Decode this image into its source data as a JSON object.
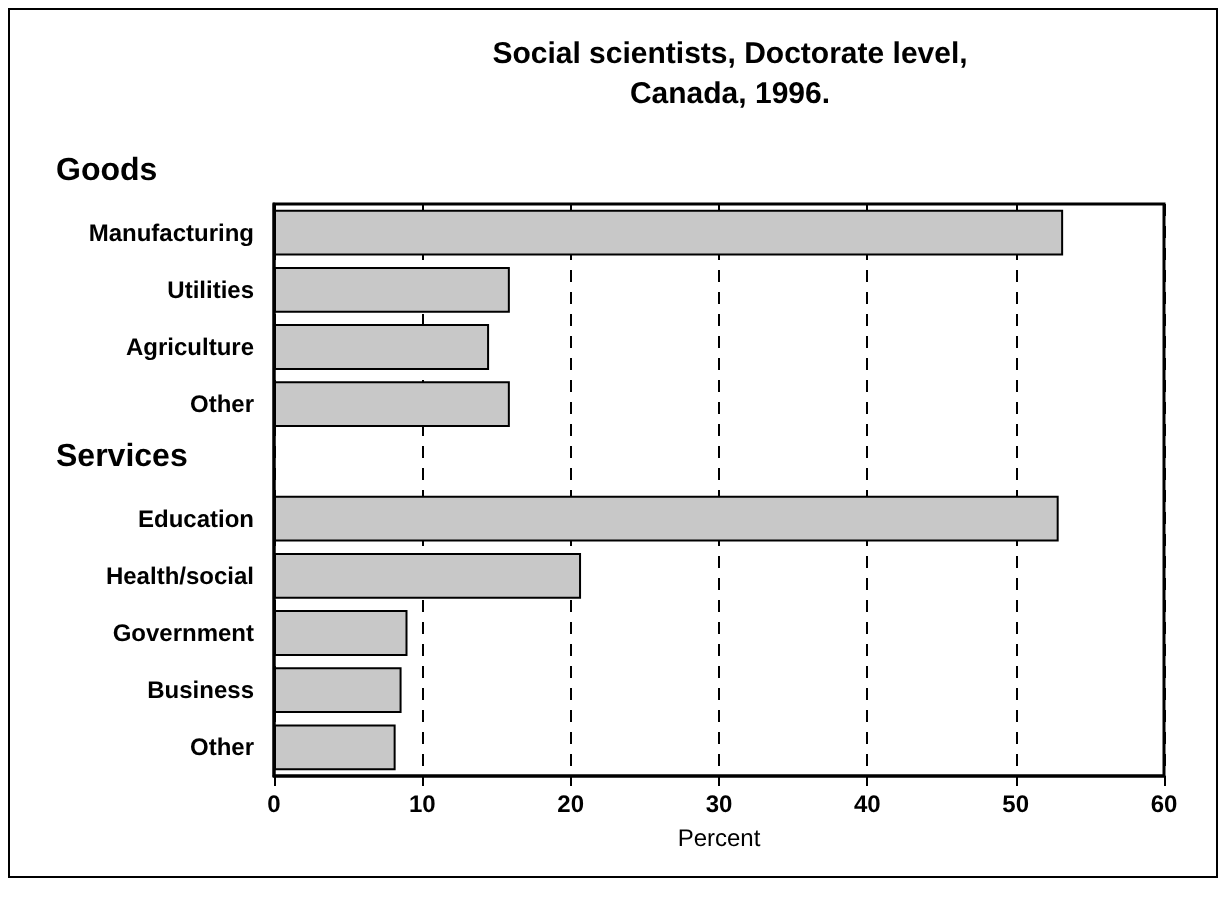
{
  "chart_data": {
    "type": "bar",
    "orientation": "horizontal",
    "title": "Social scientists, Doctorate level,\nCanada, 1996.",
    "xlabel": "Percent",
    "categories": [
      "Manufacturing",
      "Utilities",
      "Agriculture",
      "Other",
      null,
      "Education",
      "Health/social",
      "Government",
      "Business",
      "Other"
    ],
    "values": [
      53.2,
      15.9,
      14.5,
      15.9,
      null,
      52.9,
      20.7,
      9.0,
      8.6,
      8.2
    ],
    "color": "#c8c8c8",
    "annotations": [
      "Goods",
      "Services"
    ],
    "xlim": [
      0,
      60
    ],
    "xticks": [
      0,
      10,
      20,
      30,
      40,
      50,
      60
    ],
    "grid": "x"
  }
}
